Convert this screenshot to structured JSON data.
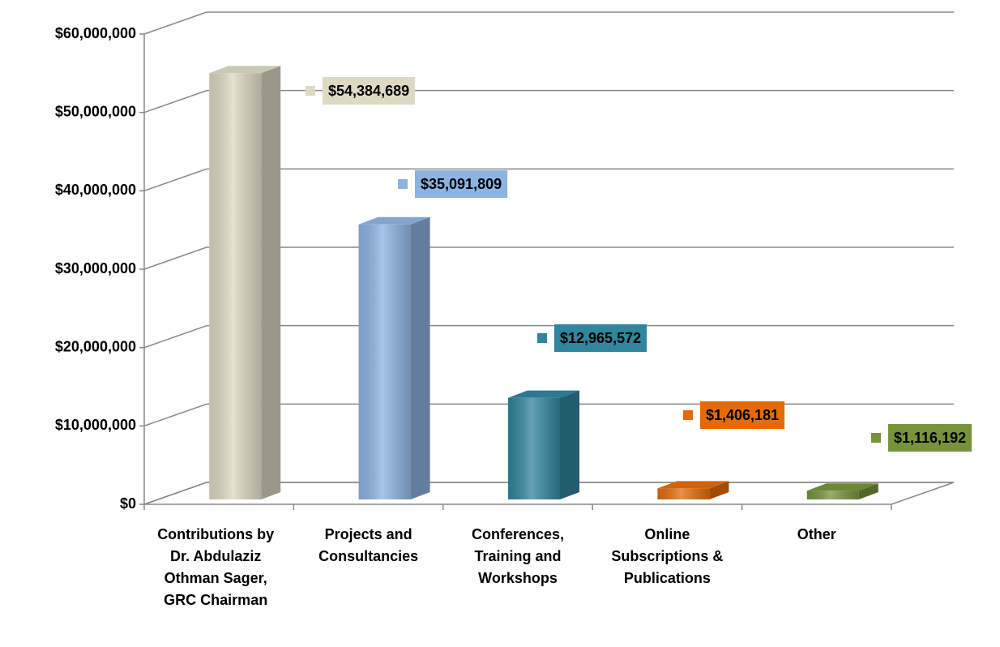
{
  "chart_data": {
    "type": "bar3d",
    "categories": [
      "Contributions by Dr. Abdulaziz Othman Sager, GRC Chairman",
      "Projects and Consultancies",
      "Conferences, Training and Workshops",
      "Online Subscriptions & Publications",
      "Other"
    ],
    "values": [
      54384689,
      35091809,
      12965572,
      1406181,
      1116192
    ],
    "value_labels": [
      "$54,384,689",
      "$35,091,809",
      "$12,965,572",
      "$1,406,181",
      "$1,116,192"
    ],
    "colors": [
      "#ddd9c3",
      "#8db3e2",
      "#31859c",
      "#e36c09",
      "#77933c"
    ],
    "ylim": [
      0,
      60000000
    ],
    "yticks": [
      {
        "value": 0,
        "label": "$0"
      },
      {
        "value": 10000000,
        "label": "$10,000,000"
      },
      {
        "value": 20000000,
        "label": "$20,000,000"
      },
      {
        "value": 30000000,
        "label": "$30,000,000"
      },
      {
        "value": 40000000,
        "label": "$40,000,000"
      },
      {
        "value": 50000000,
        "label": "$50,000,000"
      },
      {
        "value": 60000000,
        "label": "$60,000,000"
      }
    ],
    "grid": true
  }
}
